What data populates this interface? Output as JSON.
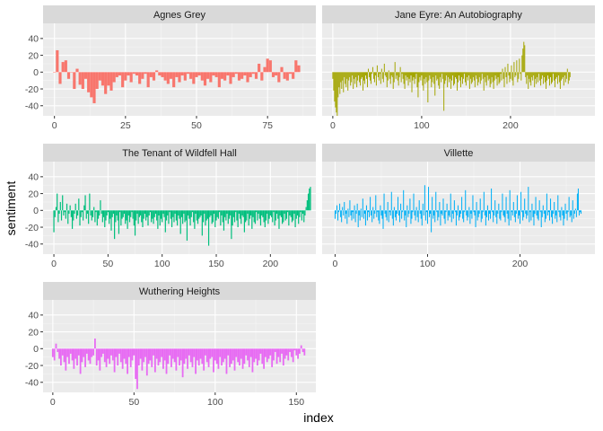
{
  "chart_data": {
    "type": "bar",
    "xlabel": "index",
    "ylabel": "sentiment",
    "ylim": [
      -52,
      58
    ],
    "y_ticks": [
      -40,
      -20,
      0,
      20,
      40
    ],
    "grid": true,
    "legend": "none",
    "panels": [
      {
        "name": "Agnes Grey",
        "color": "#F8766D",
        "xlim": [
          -4,
          92
        ],
        "x_ticks": [
          0,
          25,
          50,
          75
        ],
        "values": [
          0,
          26,
          -14,
          12,
          14,
          -8,
          0,
          -20,
          4,
          -15,
          -20,
          -8,
          -24,
          -30,
          -37,
          -20,
          -10,
          -16,
          -26,
          -16,
          -22,
          -12,
          -6,
          -4,
          -18,
          -10,
          -4,
          -12,
          -2,
          -4,
          -14,
          -8,
          -2,
          -18,
          -6,
          -10,
          2,
          -4,
          -6,
          -10,
          -14,
          -8,
          -18,
          -6,
          -12,
          -4,
          -10,
          -2,
          -8,
          -14,
          -6,
          -4,
          -10,
          -16,
          -8,
          -12,
          -4,
          -6,
          -18,
          -8,
          -10,
          -4,
          -14,
          -6,
          -2,
          -10,
          -8,
          -4,
          -12,
          -6,
          -2,
          -8,
          10,
          -10,
          6,
          16,
          14,
          -6,
          -4,
          -12,
          6,
          -8,
          -10,
          -2,
          -8,
          14,
          8
        ],
        "annotations": []
      },
      {
        "name": "Jane Eyre: An Autobiography",
        "color": "#A3A500",
        "xlim": [
          -12,
          295
        ],
        "x_ticks": [
          0,
          100,
          200
        ],
        "values": [
          -8,
          -22,
          -35,
          -42,
          -48,
          -52,
          -30,
          -18,
          -26,
          -12,
          -20,
          -10,
          -24,
          -6,
          -14,
          -18,
          -8,
          -22,
          -10,
          -6,
          -16,
          -12,
          -4,
          -20,
          -8,
          -14,
          -6,
          -18,
          -10,
          -4,
          -12,
          -16,
          -8,
          -6,
          -22,
          -10,
          -14,
          -4,
          -8,
          -18,
          4,
          -6,
          -10,
          -14,
          -2,
          6,
          -8,
          -12,
          -4,
          -16,
          8,
          -6,
          -10,
          -2,
          -14,
          4,
          -8,
          -12,
          10,
          -4,
          -6,
          -18,
          -10,
          2,
          -8,
          -14,
          -4,
          -6,
          -20,
          -12,
          12,
          -8,
          -4,
          -10,
          -16,
          -6,
          6,
          -12,
          -2,
          -8,
          -14,
          -20,
          -4,
          -10,
          -6,
          -16,
          -8,
          -12,
          -4,
          -24,
          -10,
          -6,
          -14,
          -8,
          -2,
          -18,
          -30,
          -12,
          -6,
          -10,
          -4,
          -16,
          -22,
          -8,
          -14,
          -6,
          -12,
          -36,
          -10,
          -4,
          -8,
          -18,
          -12,
          -6,
          -14,
          -28,
          -4,
          -10,
          -8,
          -16,
          -20,
          -6,
          -12,
          -2,
          -8,
          -46,
          -14,
          -10,
          -4,
          -18,
          -6,
          -12,
          -8,
          -20,
          -10,
          -4,
          -16,
          -14,
          -6,
          -8,
          -22,
          -12,
          -4,
          -10,
          -18,
          -6,
          -14,
          -8,
          -2,
          -12,
          -16,
          -6,
          -10,
          -4,
          -20,
          -8,
          -14,
          -12,
          -6,
          -10,
          -18,
          -4,
          -8,
          -16,
          -12,
          -6,
          -14,
          -10,
          -2,
          -8,
          -22,
          -6,
          -12,
          -16,
          -4,
          -10,
          -8,
          -18,
          -14,
          -6,
          -12,
          -20,
          -10,
          -4,
          -8,
          -16,
          -6,
          -14,
          -12,
          -2,
          -10,
          4,
          -8,
          -18,
          6,
          -6,
          -14,
          10,
          -4,
          -12,
          -8,
          8,
          -10,
          -16,
          12,
          -6,
          -4,
          14,
          -12,
          -8,
          16,
          -2,
          -10,
          20,
          28,
          36,
          32,
          -6,
          -14,
          -4,
          -20,
          -8,
          -12,
          -16,
          -6,
          -10,
          -4,
          -18,
          -8,
          -14,
          -6,
          -12,
          -2,
          -10,
          -16,
          -8,
          -4,
          -14,
          -6,
          -12,
          -20,
          -10,
          -4,
          -8,
          -16,
          -6,
          -14,
          -12,
          -2,
          -10,
          -18,
          -8,
          -6,
          -14,
          -4,
          -12,
          -20,
          -10,
          -8,
          -6,
          -16,
          -4,
          -12,
          -8,
          4,
          -14,
          -10,
          -6
        ],
        "annotations": []
      },
      {
        "name": "The Tenant of Wildfell Hall",
        "color": "#00BF7D",
        "xlim": [
          -10,
          242
        ],
        "x_ticks": [
          0,
          50,
          100,
          150,
          200
        ],
        "values": [
          -26,
          -8,
          4,
          20,
          -14,
          -4,
          10,
          -12,
          18,
          -6,
          -2,
          -10,
          8,
          -16,
          -4,
          6,
          -8,
          -22,
          -12,
          -4,
          8,
          -10,
          -6,
          14,
          -18,
          -8,
          -2,
          -12,
          6,
          18,
          -10,
          -4,
          -16,
          20,
          -6,
          -12,
          -8,
          4,
          -14,
          -2,
          -18,
          -10,
          -6,
          12,
          -4,
          -14,
          -8,
          -20,
          -12,
          -6,
          -2,
          -16,
          -10,
          -24,
          -8,
          -4,
          -34,
          -14,
          -6,
          -12,
          -28,
          -2,
          -18,
          -10,
          -8,
          -4,
          -16,
          -12,
          -22,
          -6,
          -14,
          -8,
          -2,
          -10,
          -18,
          -30,
          -12,
          -4,
          -16,
          -8,
          -6,
          -14,
          -20,
          -10,
          -4,
          -12,
          -8,
          -18,
          -6,
          -2,
          -14,
          -10,
          -16,
          -8,
          -4,
          -12,
          -22,
          -6,
          -18,
          -10,
          -14,
          -4,
          -8,
          -26,
          -12,
          -6,
          -16,
          -2,
          -10,
          -20,
          -8,
          -14,
          -4,
          -12,
          -18,
          -6,
          -10,
          -28,
          -8,
          -16,
          -4,
          -14,
          -12,
          -36,
          -6,
          -10,
          -18,
          -8,
          -2,
          -14,
          -22,
          -4,
          -12,
          -16,
          -10,
          -8,
          -6,
          -30,
          -14,
          -4,
          -18,
          -12,
          -10,
          -42,
          -8,
          -6,
          -16,
          -14,
          -4,
          -20,
          -12,
          -8,
          -10,
          -2,
          -18,
          -6,
          -14,
          -24,
          -8,
          -12,
          -4,
          -16,
          -10,
          -6,
          -34,
          -18,
          -8,
          -14,
          -2,
          -12,
          -20,
          -4,
          -10,
          -16,
          -6,
          -8,
          -26,
          -14,
          -12,
          -4,
          -18,
          -10,
          -6,
          -22,
          -8,
          -14,
          -16,
          -2,
          -12,
          -4,
          -10,
          -18,
          -6,
          -8,
          -14,
          -20,
          -12,
          -4,
          -16,
          -10,
          -6,
          -8,
          -14,
          -2,
          -18,
          -12,
          -4,
          -10,
          -22,
          -6,
          -8,
          -16,
          -14,
          -4,
          -12,
          -10,
          -2,
          -18,
          -6,
          -8,
          -14,
          -12,
          -4,
          -20,
          -10,
          -6,
          -16,
          -8,
          -2,
          -12,
          -4,
          -14,
          -6,
          4,
          12,
          20,
          26,
          28
        ],
        "annotations": []
      },
      {
        "name": "Villette",
        "color": "#00B0F6",
        "xlim": [
          -14,
          281
        ],
        "x_ticks": [
          0,
          100,
          200
        ],
        "values": [
          -10,
          -4,
          6,
          -12,
          -2,
          8,
          -8,
          -14,
          4,
          -6,
          10,
          -10,
          -4,
          -16,
          2,
          -8,
          12,
          -6,
          -12,
          -2,
          -10,
          6,
          -14,
          -4,
          8,
          -20,
          -6,
          -12,
          2,
          -8,
          14,
          -10,
          -4,
          -18,
          6,
          -12,
          -2,
          -8,
          16,
          -6,
          -14,
          4,
          -10,
          -4,
          18,
          -8,
          -2,
          -12,
          -16,
          6,
          -6,
          -10,
          -22,
          20,
          -4,
          -8,
          -12,
          10,
          -14,
          -2,
          -6,
          22,
          -10,
          -18,
          4,
          -8,
          -12,
          -4,
          16,
          -6,
          -14,
          8,
          -10,
          -2,
          24,
          -12,
          -6,
          -20,
          6,
          -8,
          -4,
          14,
          -16,
          -10,
          -2,
          20,
          -6,
          -12,
          4,
          -8,
          -14,
          12,
          -4,
          -10,
          -18,
          8,
          -6,
          30,
          -12,
          -2,
          -16,
          28,
          -8,
          -4,
          -26,
          16,
          -10,
          -6,
          -14,
          22,
          -2,
          -12,
          -8,
          10,
          -18,
          -4,
          -6,
          14,
          -10,
          -16,
          -2,
          8,
          -12,
          -6,
          -8,
          20,
          -14,
          -4,
          -10,
          12,
          -2,
          -18,
          -6,
          6,
          -12,
          -8,
          -4,
          16,
          -10,
          -14,
          -2,
          24,
          -6,
          -12,
          -8,
          4,
          -16,
          -4,
          -10,
          18,
          -2,
          -6,
          -20,
          10,
          -12,
          -8,
          -4,
          14,
          -14,
          -10,
          -2,
          22,
          -6,
          -18,
          -8,
          6,
          -12,
          -4,
          -10,
          26,
          -2,
          -14,
          -6,
          12,
          -8,
          -16,
          -4,
          8,
          -10,
          -12,
          -2,
          20,
          -6,
          -8,
          -14,
          16,
          -4,
          -10,
          -18,
          24,
          -12,
          -2,
          -6,
          10,
          -8,
          -14,
          -4,
          18,
          -10,
          -6,
          -16,
          22,
          -2,
          -12,
          -8,
          14,
          -4,
          -10,
          -6,
          28,
          -14,
          -2,
          -12,
          8,
          -8,
          -18,
          -4,
          16,
          -6,
          -10,
          -12,
          12,
          -2,
          -20,
          -8,
          6,
          -4,
          -14,
          -10,
          20,
          -6,
          -2,
          -12,
          14,
          -8,
          -16,
          -4,
          10,
          -10,
          -6,
          -14,
          18,
          -2,
          -8,
          -12,
          4,
          -6,
          -18,
          -10,
          8,
          -4,
          -12,
          -2,
          16,
          -8,
          -6,
          -14,
          12,
          -10,
          -4,
          2,
          -8,
          20,
          26,
          -6,
          -2,
          -4
        ],
        "annotations": []
      },
      {
        "name": "Wuthering Heights",
        "color": "#E76BF3",
        "xlim": [
          -6,
          162
        ],
        "x_ticks": [
          0,
          50,
          100,
          150
        ],
        "values": [
          -10,
          -14,
          6,
          -4,
          -12,
          -20,
          -8,
          -16,
          -26,
          -10,
          -18,
          -6,
          -14,
          -24,
          -12,
          -20,
          -8,
          -30,
          -16,
          -10,
          -22,
          -6,
          -14,
          -18,
          -10,
          -8,
          12,
          -20,
          -14,
          -26,
          -10,
          -6,
          -16,
          -22,
          -12,
          -18,
          -8,
          -14,
          -28,
          -10,
          -20,
          -6,
          -16,
          -24,
          -12,
          -18,
          -30,
          -10,
          -22,
          -14,
          -8,
          -36,
          -48,
          -20,
          -12,
          -26,
          -16,
          -10,
          -32,
          -18,
          -14,
          -22,
          -8,
          -28,
          -12,
          -20,
          -16,
          -10,
          -24,
          -14,
          -30,
          -18,
          -8,
          -22,
          -12,
          -16,
          -26,
          -10,
          -20,
          -14,
          -34,
          -18,
          -12,
          -24,
          -8,
          -16,
          -22,
          -10,
          -30,
          -14,
          -20,
          -12,
          -18,
          -26,
          -8,
          -16,
          -22,
          -12,
          -10,
          -28,
          -14,
          -18,
          -24,
          -10,
          -20,
          -16,
          -12,
          -30,
          -8,
          -22,
          -18,
          -14,
          -26,
          -10,
          -16,
          -20,
          -12,
          -24,
          -18,
          -8,
          -14,
          -22,
          -10,
          -28,
          -16,
          -12,
          -20,
          -14,
          -6,
          -18,
          -24,
          -10,
          -16,
          -12,
          -8,
          -22,
          -14,
          -4,
          -18,
          -10,
          -16,
          -6,
          -20,
          -12,
          -8,
          -14,
          -4,
          -10,
          -16,
          -2,
          -8,
          -12,
          -6,
          4,
          -4,
          -8
        ]
      }
    ]
  }
}
